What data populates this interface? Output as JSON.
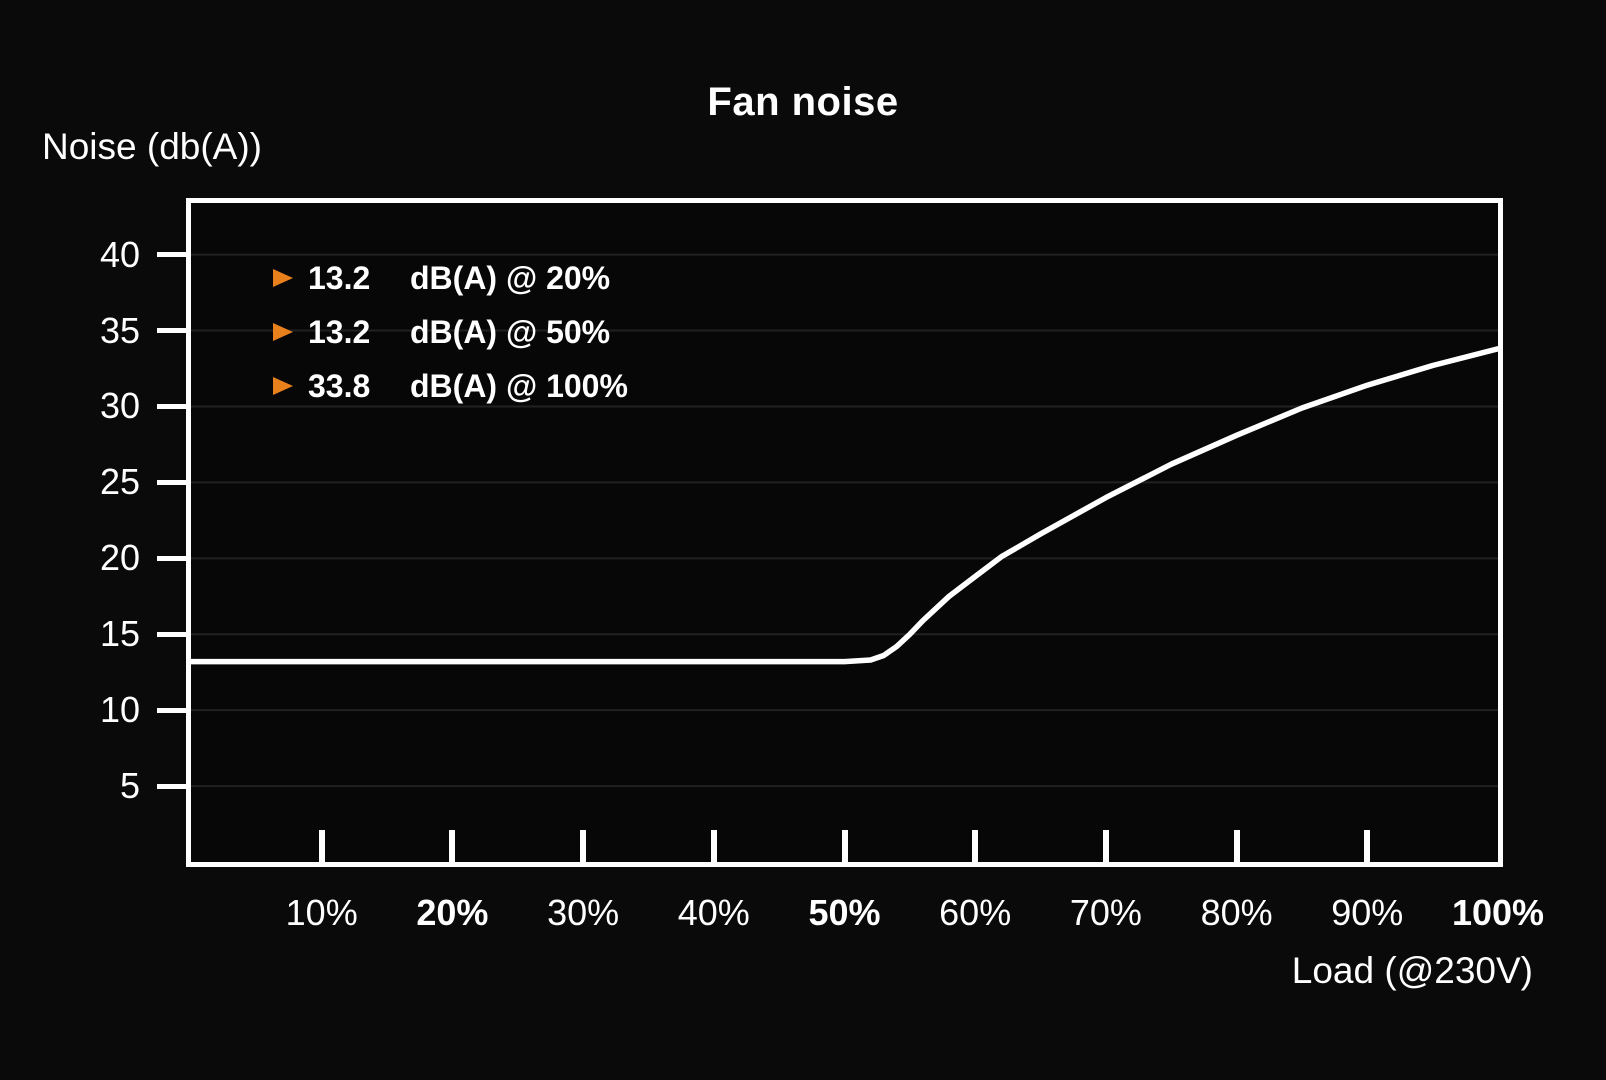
{
  "title": "Fan noise",
  "y_axis": {
    "label": "Noise (db(A))",
    "ticks": [
      40,
      35,
      30,
      25,
      20,
      15,
      10,
      5
    ],
    "min": 0,
    "max": 43.4
  },
  "x_axis": {
    "label": "Load (@230V)",
    "ticks": [
      {
        "pct": 10,
        "label": "10%",
        "bold": false,
        "tick": true
      },
      {
        "pct": 20,
        "label": "20%",
        "bold": true,
        "tick": true
      },
      {
        "pct": 30,
        "label": "30%",
        "bold": false,
        "tick": true
      },
      {
        "pct": 40,
        "label": "40%",
        "bold": false,
        "tick": true
      },
      {
        "pct": 50,
        "label": "50%",
        "bold": true,
        "tick": true
      },
      {
        "pct": 60,
        "label": "60%",
        "bold": false,
        "tick": true
      },
      {
        "pct": 70,
        "label": "70%",
        "bold": false,
        "tick": true
      },
      {
        "pct": 80,
        "label": "80%",
        "bold": false,
        "tick": true
      },
      {
        "pct": 90,
        "label": "90%",
        "bold": false,
        "tick": true
      },
      {
        "pct": 100,
        "label": "100%",
        "bold": true,
        "tick": false
      }
    ]
  },
  "legend": [
    {
      "value": "13.2",
      "label": "dB(A) @ 20%"
    },
    {
      "value": "13.2",
      "label": "dB(A) @ 50%"
    },
    {
      "value": "33.8",
      "label": "dB(A) @ 100%"
    }
  ],
  "colors": {
    "background": "#0a0a0b",
    "plot_background": "#070708",
    "line": "#ffffff",
    "grid": "#212123",
    "marker_orange": "#e8811c",
    "text": "#ffffff"
  },
  "chart_data": {
    "type": "line",
    "title": "Fan noise",
    "xlabel": "Load (@230V)",
    "ylabel": "Noise (db(A))",
    "xlim": [
      0,
      100
    ],
    "ylim": [
      0,
      43.4
    ],
    "grid": "horizontal lines every 5 dB(A), faint dark gray",
    "legend_position": "top-left inside plot",
    "series": [
      {
        "name": "Fan noise dB(A) vs load",
        "color": "#ffffff",
        "points": [
          [
            0,
            13.2
          ],
          [
            10,
            13.2
          ],
          [
            20,
            13.2
          ],
          [
            30,
            13.2
          ],
          [
            40,
            13.2
          ],
          [
            50,
            13.2
          ],
          [
            52,
            13.3
          ],
          [
            53,
            13.6
          ],
          [
            54,
            14.2
          ],
          [
            55,
            15.0
          ],
          [
            56,
            15.9
          ],
          [
            58,
            17.5
          ],
          [
            60,
            18.8
          ],
          [
            62,
            20.1
          ],
          [
            65,
            21.6
          ],
          [
            70,
            24.0
          ],
          [
            75,
            26.2
          ],
          [
            80,
            28.1
          ],
          [
            85,
            29.9
          ],
          [
            90,
            31.4
          ],
          [
            95,
            32.7
          ],
          [
            100,
            33.8
          ]
        ]
      }
    ],
    "annotations": [
      "13.2 dB(A) @ 20%",
      "13.2 dB(A) @ 50%",
      "33.8 dB(A) @ 100%"
    ]
  }
}
